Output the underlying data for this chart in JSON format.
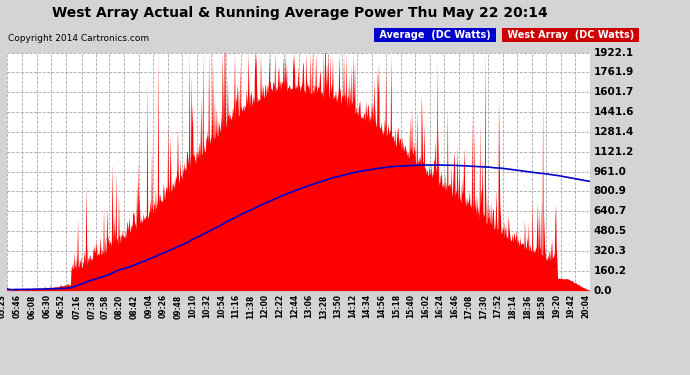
{
  "title": "West Array Actual & Running Average Power Thu May 22 20:14",
  "copyright": "Copyright 2014 Cartronics.com",
  "yticks": [
    0.0,
    160.2,
    320.3,
    480.5,
    640.7,
    800.9,
    961.0,
    1121.2,
    1281.4,
    1441.6,
    1601.7,
    1761.9,
    1922.1
  ],
  "ymax": 1922.1,
  "ymin": 0.0,
  "fill_color": "#ff0000",
  "avg_color": "#0000cc",
  "fig_bg": "#d4d4d4",
  "plot_bg": "#ffffff",
  "grid_color": "#aaaaaa",
  "legend_avg_bg": "#0000cc",
  "legend_west_bg": "#cc0000",
  "legend_avg_label": "Average  (DC Watts)",
  "legend_west_label": "West Array  (DC Watts)",
  "xtick_labels": [
    "05:23",
    "05:46",
    "06:08",
    "06:30",
    "06:52",
    "07:16",
    "07:38",
    "07:58",
    "08:20",
    "08:42",
    "09:04",
    "09:26",
    "09:48",
    "10:10",
    "10:32",
    "10:54",
    "11:16",
    "11:38",
    "12:00",
    "12:22",
    "12:44",
    "13:06",
    "13:28",
    "13:50",
    "14:12",
    "14:34",
    "14:56",
    "15:18",
    "15:40",
    "16:02",
    "16:24",
    "16:46",
    "17:08",
    "17:30",
    "17:52",
    "18:14",
    "18:36",
    "18:58",
    "19:20",
    "19:42",
    "20:04"
  ]
}
